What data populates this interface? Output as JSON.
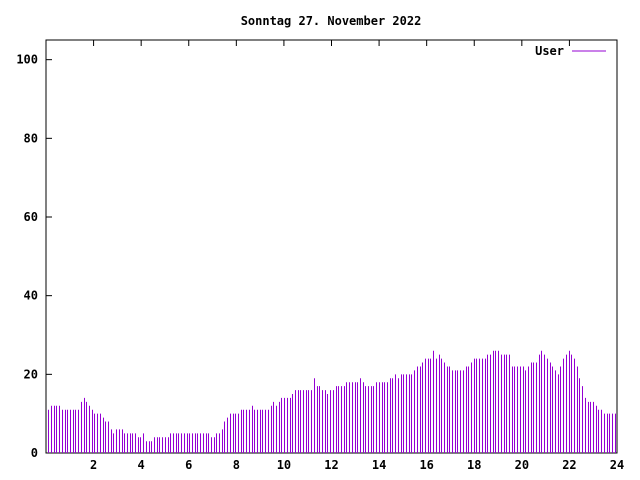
{
  "chart_data": {
    "type": "bar",
    "title": "Sonntag 27. November 2022",
    "xlabel": "",
    "ylabel": "",
    "xlim": [
      0,
      24
    ],
    "ylim": [
      0,
      105
    ],
    "x_ticks": [
      "2",
      "4",
      "6",
      "8",
      "10",
      "12",
      "14",
      "16",
      "18",
      "20",
      "22",
      "24"
    ],
    "y_ticks": [
      "0",
      "20",
      "40",
      "60",
      "80",
      "100"
    ],
    "grid": false,
    "legend_position": "top-right",
    "series": [
      {
        "name": "User",
        "color": "#9400d3",
        "values": [
          11,
          12,
          12,
          12,
          12,
          11,
          11,
          11,
          11,
          11,
          11,
          11,
          13,
          14,
          13,
          12,
          11,
          10,
          10,
          10,
          9,
          8,
          8,
          6,
          5,
          6,
          6,
          6,
          5,
          5,
          5,
          5,
          5,
          4,
          4,
          5,
          3,
          3,
          3,
          4,
          4,
          4,
          4,
          4,
          4,
          5,
          5,
          5,
          5,
          5,
          5,
          5,
          5,
          5,
          5,
          5,
          5,
          5,
          5,
          5,
          4,
          4,
          5,
          5,
          6,
          8,
          9,
          10,
          10,
          10,
          10,
          11,
          11,
          11,
          11,
          12,
          11,
          11,
          11,
          11,
          11,
          11,
          12,
          13,
          12,
          13,
          14,
          14,
          14,
          14,
          15,
          16,
          16,
          16,
          16,
          16,
          16,
          16,
          19,
          17,
          17,
          16,
          16,
          15,
          16,
          16,
          17,
          17,
          17,
          17,
          18,
          18,
          18,
          18,
          18,
          19,
          18,
          17,
          17,
          17,
          17,
          18,
          18,
          18,
          18,
          18,
          19,
          19,
          20,
          19,
          20,
          20,
          20,
          20,
          20,
          21,
          22,
          22,
          23,
          24,
          24,
          24,
          26,
          24,
          25,
          24,
          23,
          22,
          22,
          21,
          21,
          21,
          21,
          21,
          22,
          22,
          23,
          24,
          24,
          24,
          24,
          24,
          25,
          25,
          26,
          26,
          26,
          25,
          25,
          25,
          25,
          22,
          22,
          22,
          22,
          22,
          21,
          22,
          23,
          23,
          23,
          25,
          26,
          25,
          24,
          23,
          22,
          21,
          20,
          22,
          24,
          25,
          26,
          25,
          24,
          22,
          19,
          17,
          14,
          13,
          13,
          13,
          12,
          11,
          11,
          10,
          10,
          10,
          10,
          10
        ]
      }
    ]
  }
}
